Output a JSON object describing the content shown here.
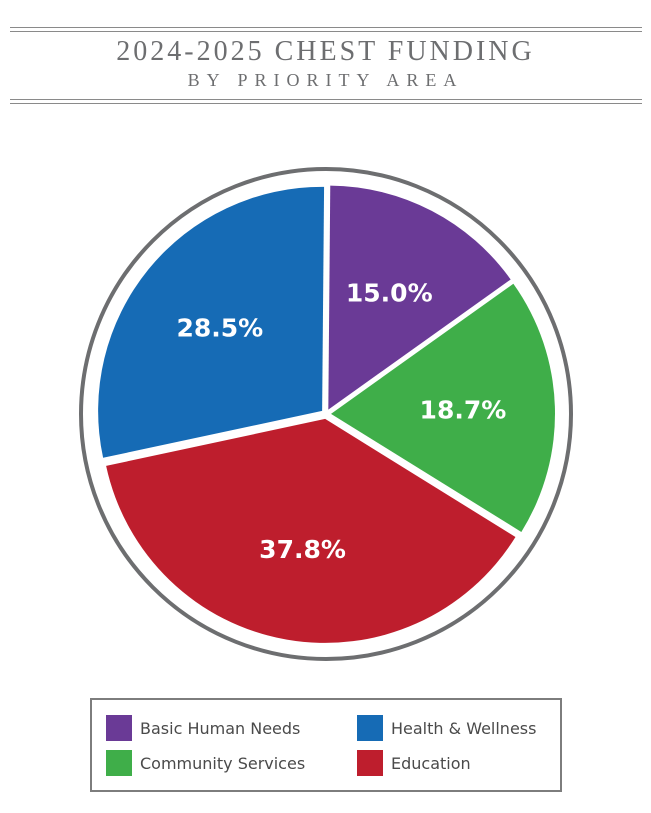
{
  "header": {
    "title": "2024-2025 CHEST FUNDING",
    "subtitle": "BY PRIORITY AREA"
  },
  "chart_data": {
    "type": "pie",
    "title": "2024-2025 CHEST FUNDING",
    "subtitle": "BY PRIORITY AREA",
    "slices": [
      {
        "name": "Basic Human Needs",
        "value": 15.0,
        "label": "15.0%",
        "color": "#6a3a96"
      },
      {
        "name": "Community Services",
        "value": 18.7,
        "label": "18.7%",
        "color": "#3fae49"
      },
      {
        "name": "Education",
        "value": 37.8,
        "label": "37.8%",
        "color": "#be1e2d"
      },
      {
        "name": "Health & Wellness",
        "value": 28.5,
        "label": "28.5%",
        "color": "#166bb5"
      }
    ],
    "legend_position": "bottom"
  },
  "legend": {
    "items": [
      {
        "label": "Basic Human Needs",
        "color": "#6a3a96"
      },
      {
        "label": "Health & Wellness",
        "color": "#166bb5"
      },
      {
        "label": "Community Services",
        "color": "#3fae49"
      },
      {
        "label": "Education",
        "color": "#be1e2d"
      }
    ]
  }
}
